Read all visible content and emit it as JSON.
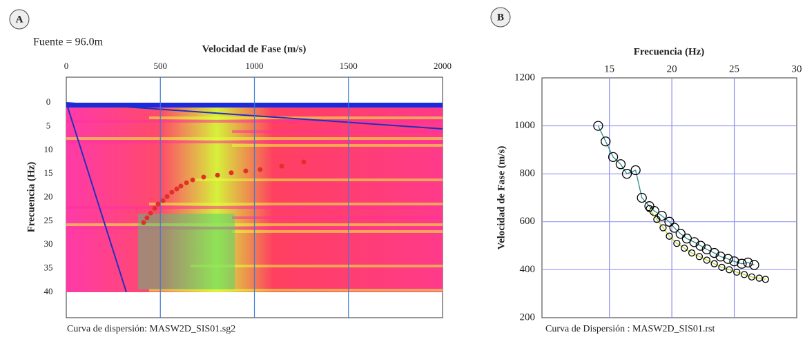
{
  "chart_data": [
    {
      "type": "dispersion-image",
      "panel_label": "A",
      "annotation": "Fuente = 96.0m",
      "x_label": "Velocidad de Fase (m/s)",
      "y_label": "Frecuencia (Hz)",
      "caption": "Curva de dispersión: MASW2D_SIS01.sg2",
      "xlim": [
        0,
        2000
      ],
      "xticks": [
        0,
        500,
        1000,
        1500,
        2000
      ],
      "ylim": [
        45.4,
        -5.4
      ],
      "yticks": [
        0,
        5,
        10,
        15,
        20,
        25,
        30,
        35,
        40
      ],
      "grid": true,
      "grid_color": "#3a7bd5",
      "series": [
        {
          "color": "#e0302a",
          "x": [
            411,
            429,
            448,
            470,
            488,
            514,
            536,
            561,
            587,
            609,
            639,
            672,
            730,
            804,
            877,
            954,
            1031,
            1145,
            1262
          ],
          "values": [
            25.3,
            24.3,
            23.3,
            22.3,
            21.4,
            20.7,
            19.8,
            18.9,
            18.2,
            17.6,
            16.9,
            16.3,
            15.7,
            15.3,
            14.8,
            14.4,
            14.1,
            13.4,
            12.5
          ]
        }
      ]
    },
    {
      "type": "scatter",
      "panel_label": "B",
      "x_label": "Frecuencia (Hz)",
      "y_label": "Velocidad de Fase (m/s)",
      "caption": "Curva de Dispersión : MASW2D_SIS01.rst",
      "xlim": [
        9.6,
        30
      ],
      "xticks": [
        15,
        20,
        25,
        30
      ],
      "ylim": [
        200,
        1200
      ],
      "yticks": [
        200,
        400,
        600,
        800,
        1000,
        1200
      ],
      "grid": true,
      "grid_color": "#8c8cf0",
      "series": [
        {
          "color": "#000000",
          "line_color": "#2a8a8a",
          "x": [
            14.1,
            14.7,
            15.3,
            15.9,
            16.4,
            17.1,
            17.6,
            18.2,
            18.6,
            19.2,
            19.8,
            20.2,
            20.7,
            21.2,
            21.8,
            22.3,
            22.8,
            23.4,
            23.9,
            24.5,
            25,
            25.6,
            26.1,
            26.6
          ],
          "values": [
            1000,
            935,
            870,
            840,
            800,
            815,
            700,
            665,
            645,
            625,
            600,
            575,
            550,
            530,
            515,
            500,
            485,
            470,
            455,
            445,
            435,
            425,
            430,
            420
          ]
        },
        {
          "color": "#000000",
          "line_color": "#b8d42a",
          "x": [
            18.2,
            18.8,
            19.3,
            19.8,
            20.4,
            21,
            21.6,
            22.2,
            22.8,
            23.4,
            24,
            24.6,
            25.2,
            25.8,
            26.4,
            27,
            27.5
          ],
          "values": [
            655,
            610,
            575,
            540,
            510,
            490,
            470,
            455,
            440,
            425,
            410,
            400,
            390,
            380,
            370,
            365,
            360
          ]
        }
      ]
    }
  ]
}
